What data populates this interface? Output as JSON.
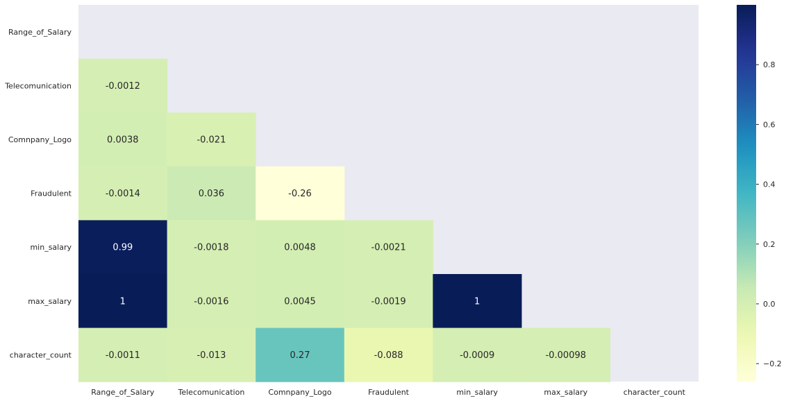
{
  "chart_data": {
    "type": "heatmap",
    "mask": "upper-triangle-including-diagonal",
    "rows": [
      "Range_of_Salary",
      "Telecomunication",
      "Comnpany_Logo",
      "Fraudulent",
      "min_salary",
      "max_salary",
      "character_count"
    ],
    "cols": [
      "Range_of_Salary",
      "Telecomunication",
      "Comnpany_Logo",
      "Fraudulent",
      "min_salary",
      "max_salary",
      "character_count"
    ],
    "values": [
      [
        null,
        null,
        null,
        null,
        null,
        null,
        null
      ],
      [
        -0.0012,
        null,
        null,
        null,
        null,
        null,
        null
      ],
      [
        0.0038,
        -0.021,
        null,
        null,
        null,
        null,
        null
      ],
      [
        -0.0014,
        0.036,
        -0.26,
        null,
        null,
        null,
        null
      ],
      [
        0.99,
        -0.0018,
        0.0048,
        -0.0021,
        null,
        null,
        null
      ],
      [
        1.0,
        -0.0016,
        0.0045,
        -0.0019,
        1.0,
        null,
        null
      ],
      [
        -0.0011,
        -0.013,
        0.27,
        -0.088,
        -0.0009,
        -0.00098,
        null
      ]
    ],
    "labels": [
      [
        null,
        null,
        null,
        null,
        null,
        null,
        null
      ],
      [
        "-0.0012",
        null,
        null,
        null,
        null,
        null,
        null
      ],
      [
        "0.0038",
        "-0.021",
        null,
        null,
        null,
        null,
        null
      ],
      [
        "-0.0014",
        "0.036",
        "-0.26",
        null,
        null,
        null,
        null
      ],
      [
        "0.99",
        "-0.0018",
        "0.0048",
        "-0.0021",
        null,
        null,
        null
      ],
      [
        "1",
        "-0.0016",
        "0.0045",
        "-0.0019",
        "1",
        null,
        null
      ],
      [
        "-0.0011",
        "-0.013",
        "0.27",
        "-0.088",
        "-0.0009",
        "-0.00098",
        null
      ]
    ],
    "colormap": "YlGnBu",
    "vmin": -0.26,
    "vmax": 1.0,
    "colorbar": {
      "ticks": [
        -0.2,
        0.0,
        0.2,
        0.4,
        0.6,
        0.8
      ],
      "tick_labels": [
        "−0.2",
        "0.0",
        "0.2",
        "0.4",
        "0.6",
        "0.8"
      ],
      "ylim": [
        -0.26,
        1.0
      ]
    },
    "background_color": "#eaeaf2",
    "title": "",
    "xlabel": "",
    "ylabel": ""
  }
}
